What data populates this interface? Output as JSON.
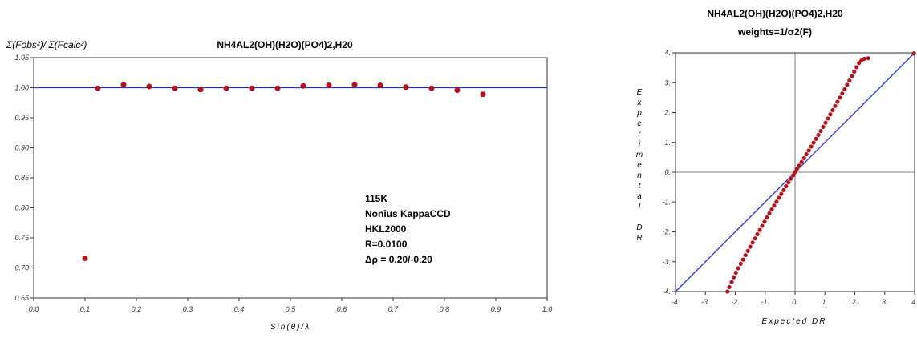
{
  "chart_data": [
    {
      "type": "scatter",
      "title": "NH4AL2(OH)(H2O)(PO4)2,H20",
      "ylabel": "Σ(Fobs²)/ Σ(Fcalc²)",
      "xlabel": "Sin(θ)/λ",
      "xlim": [
        0.0,
        1.0
      ],
      "ylim": [
        0.65,
        1.05
      ],
      "x_ticks": [
        "0.0",
        "0.1",
        "0.2",
        "0.3",
        "0.4",
        "0.5",
        "0.6",
        "0.7",
        "0.8",
        "0.9",
        "1.0"
      ],
      "y_ticks": [
        "1.05",
        "1.00",
        "0.95",
        "0.90",
        "0.85",
        "0.80",
        "0.75",
        "0.70",
        "0.65"
      ],
      "reference_line": 1.0,
      "marker_color": "#b0151e",
      "line_color": "#1f2fd0",
      "points": [
        {
          "x": 0.1,
          "y": 0.716
        },
        {
          "x": 0.125,
          "y": 0.999
        },
        {
          "x": 0.175,
          "y": 1.005
        },
        {
          "x": 0.225,
          "y": 1.002
        },
        {
          "x": 0.275,
          "y": 0.999
        },
        {
          "x": 0.325,
          "y": 0.997
        },
        {
          "x": 0.375,
          "y": 0.999
        },
        {
          "x": 0.425,
          "y": 0.999
        },
        {
          "x": 0.475,
          "y": 0.999
        },
        {
          "x": 0.525,
          "y": 1.003
        },
        {
          "x": 0.575,
          "y": 1.004
        },
        {
          "x": 0.625,
          "y": 1.005
        },
        {
          "x": 0.675,
          "y": 1.004
        },
        {
          "x": 0.725,
          "y": 1.001
        },
        {
          "x": 0.775,
          "y": 0.999
        },
        {
          "x": 0.825,
          "y": 0.996
        },
        {
          "x": 0.875,
          "y": 0.989
        }
      ],
      "annotation": [
        "115K",
        "Nonius KappaCCD",
        "HKL2000",
        "R=0.0100",
        "Δρ = 0.20/-0.20"
      ]
    },
    {
      "type": "scatter",
      "title": "NH4AL2(OH)(H2O)(PO4)2,H20",
      "subtitle": "weights=1/σ2(F)",
      "ylabel": "Experimental DR",
      "xlabel": "Expected DR",
      "xlim": [
        -4,
        4
      ],
      "ylim": [
        -4,
        4
      ],
      "x_ticks": [
        "-4.",
        "-3.",
        "-2.",
        "-1.",
        "0.",
        "1.",
        "2.",
        "3.",
        "4."
      ],
      "y_ticks": [
        "4.",
        "3.",
        "2.",
        "1.",
        "0.",
        "-1.",
        "-2.",
        "-3.",
        "-4."
      ],
      "reference_line": "y = x",
      "marker_color": "#b0151e",
      "line_color": "#1f2fd0",
      "points_description": "normal probability points, slope about 1.6 through origin",
      "points": [
        {
          "x": -2.26,
          "y": -4.0
        },
        {
          "x": -2.2,
          "y": -3.85
        },
        {
          "x": -2.12,
          "y": -3.68
        },
        {
          "x": -2.05,
          "y": -3.52
        },
        {
          "x": -1.98,
          "y": -3.37
        },
        {
          "x": -1.9,
          "y": -3.22
        },
        {
          "x": -1.82,
          "y": -3.07
        },
        {
          "x": -1.74,
          "y": -2.93
        },
        {
          "x": -1.66,
          "y": -2.78
        },
        {
          "x": -1.58,
          "y": -2.64
        },
        {
          "x": -1.5,
          "y": -2.5
        },
        {
          "x": -1.42,
          "y": -2.36
        },
        {
          "x": -1.34,
          "y": -2.22
        },
        {
          "x": -1.26,
          "y": -2.08
        },
        {
          "x": -1.18,
          "y": -1.94
        },
        {
          "x": -1.1,
          "y": -1.8
        },
        {
          "x": -1.02,
          "y": -1.66
        },
        {
          "x": -0.94,
          "y": -1.52
        },
        {
          "x": -0.86,
          "y": -1.38
        },
        {
          "x": -0.78,
          "y": -1.25
        },
        {
          "x": -0.7,
          "y": -1.12
        },
        {
          "x": -0.62,
          "y": -0.99
        },
        {
          "x": -0.54,
          "y": -0.86
        },
        {
          "x": -0.46,
          "y": -0.73
        },
        {
          "x": -0.38,
          "y": -0.6
        },
        {
          "x": -0.3,
          "y": -0.47
        },
        {
          "x": -0.22,
          "y": -0.34
        },
        {
          "x": -0.14,
          "y": -0.22
        },
        {
          "x": -0.06,
          "y": -0.1
        },
        {
          "x": 0.0,
          "y": 0.0
        },
        {
          "x": 0.06,
          "y": 0.1
        },
        {
          "x": 0.14,
          "y": 0.22
        },
        {
          "x": 0.22,
          "y": 0.34
        },
        {
          "x": 0.3,
          "y": 0.47
        },
        {
          "x": 0.38,
          "y": 0.6
        },
        {
          "x": 0.46,
          "y": 0.73
        },
        {
          "x": 0.54,
          "y": 0.86
        },
        {
          "x": 0.62,
          "y": 0.99
        },
        {
          "x": 0.7,
          "y": 1.12
        },
        {
          "x": 0.78,
          "y": 1.25
        },
        {
          "x": 0.86,
          "y": 1.38
        },
        {
          "x": 0.94,
          "y": 1.52
        },
        {
          "x": 1.02,
          "y": 1.66
        },
        {
          "x": 1.1,
          "y": 1.8
        },
        {
          "x": 1.18,
          "y": 1.94
        },
        {
          "x": 1.26,
          "y": 2.08
        },
        {
          "x": 1.34,
          "y": 2.22
        },
        {
          "x": 1.42,
          "y": 2.36
        },
        {
          "x": 1.5,
          "y": 2.5
        },
        {
          "x": 1.58,
          "y": 2.64
        },
        {
          "x": 1.66,
          "y": 2.78
        },
        {
          "x": 1.74,
          "y": 2.93
        },
        {
          "x": 1.82,
          "y": 3.07
        },
        {
          "x": 1.9,
          "y": 3.22
        },
        {
          "x": 1.98,
          "y": 3.37
        },
        {
          "x": 2.06,
          "y": 3.52
        },
        {
          "x": 2.14,
          "y": 3.66
        },
        {
          "x": 2.22,
          "y": 3.74
        },
        {
          "x": 2.32,
          "y": 3.8
        },
        {
          "x": 2.45,
          "y": 3.82
        },
        {
          "x": 3.98,
          "y": 3.98
        }
      ]
    }
  ]
}
